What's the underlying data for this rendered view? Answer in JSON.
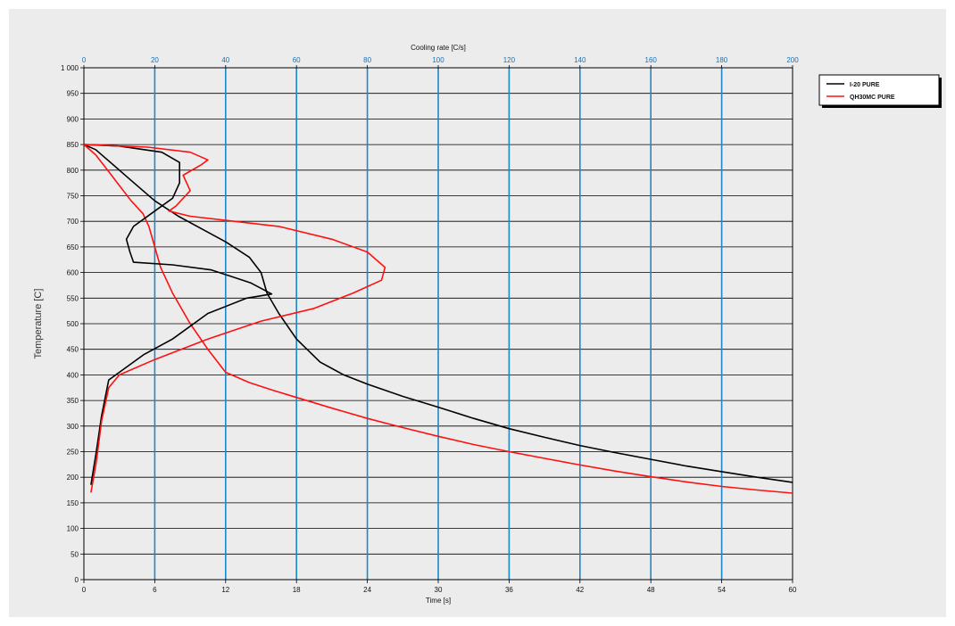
{
  "chart_data": {
    "type": "line",
    "xlabel": "Time [s]",
    "ylabel": "Temperature [C]",
    "x2label": "Cooling rate [C/s]",
    "xlim": [
      0,
      60
    ],
    "ylim": [
      0,
      1000
    ],
    "x2lim": [
      0,
      200
    ],
    "x_ticks": [
      0,
      6,
      12,
      18,
      24,
      30,
      36,
      42,
      48,
      54,
      60
    ],
    "x2_ticks": [
      0,
      20,
      40,
      60,
      80,
      100,
      120,
      140,
      160,
      180,
      200
    ],
    "y_ticks": [
      0,
      50,
      100,
      150,
      200,
      250,
      300,
      350,
      400,
      450,
      500,
      550,
      600,
      650,
      700,
      750,
      800,
      850,
      900,
      950,
      1000
    ],
    "y_tick_labels": [
      "0",
      "50",
      "100",
      "150",
      "200",
      "250",
      "300",
      "350",
      "400",
      "450",
      "500",
      "550",
      "600",
      "650",
      "700",
      "750",
      "800",
      "850",
      "900",
      "950",
      "1 000"
    ],
    "grid": true,
    "legend_position": "top-right outside",
    "series": [
      {
        "name": "I-20 PURE",
        "color": "#000000",
        "axis": "time",
        "points": [
          [
            0,
            850
          ],
          [
            1,
            840
          ],
          [
            2,
            820
          ],
          [
            4,
            780
          ],
          [
            6,
            740
          ],
          [
            8,
            710
          ],
          [
            10,
            685
          ],
          [
            12,
            660
          ],
          [
            14,
            630
          ],
          [
            15,
            600
          ],
          [
            15.5,
            560
          ],
          [
            16.5,
            520
          ],
          [
            18,
            470
          ],
          [
            20,
            425
          ],
          [
            22,
            400
          ],
          [
            24,
            382
          ],
          [
            27,
            358
          ],
          [
            30,
            337
          ],
          [
            33,
            315
          ],
          [
            36,
            295
          ],
          [
            39,
            278
          ],
          [
            42,
            262
          ],
          [
            45,
            248
          ],
          [
            48,
            235
          ],
          [
            51,
            222
          ],
          [
            54,
            211
          ],
          [
            57,
            200
          ],
          [
            60,
            190
          ]
        ]
      },
      {
        "name": "QH30MC PURE",
        "color": "#ff1010",
        "axis": "time",
        "points": [
          [
            0,
            850
          ],
          [
            1,
            830
          ],
          [
            2,
            800
          ],
          [
            3,
            770
          ],
          [
            4,
            740
          ],
          [
            5,
            715
          ],
          [
            5.5,
            690
          ],
          [
            6,
            650
          ],
          [
            6.5,
            610
          ],
          [
            7.5,
            560
          ],
          [
            9,
            500
          ],
          [
            10.5,
            450
          ],
          [
            12,
            405
          ],
          [
            14,
            385
          ],
          [
            16,
            370
          ],
          [
            18,
            356
          ],
          [
            21,
            335
          ],
          [
            24,
            315
          ],
          [
            27,
            297
          ],
          [
            30,
            280
          ],
          [
            33,
            264
          ],
          [
            36,
            250
          ],
          [
            39,
            237
          ],
          [
            42,
            224
          ],
          [
            45,
            212
          ],
          [
            48,
            201
          ],
          [
            51,
            191
          ],
          [
            54,
            182
          ],
          [
            57,
            175
          ],
          [
            60,
            169
          ]
        ]
      },
      {
        "name": "I-20 PURE",
        "color": "#000000",
        "axis": "cooling_rate",
        "points": [
          [
            2,
            185
          ],
          [
            3.5,
            250
          ],
          [
            5,
            320
          ],
          [
            7,
            390
          ],
          [
            10,
            405
          ],
          [
            17,
            440
          ],
          [
            25,
            470
          ],
          [
            35,
            520
          ],
          [
            46,
            550
          ],
          [
            53,
            558
          ],
          [
            47,
            580
          ],
          [
            36,
            605
          ],
          [
            25,
            615
          ],
          [
            14,
            620
          ],
          [
            13,
            640
          ],
          [
            12,
            665
          ],
          [
            14,
            690
          ],
          [
            20,
            720
          ],
          [
            25,
            745
          ],
          [
            27,
            775
          ],
          [
            27,
            815
          ],
          [
            22,
            835
          ],
          [
            10,
            847
          ],
          [
            0,
            850
          ]
        ]
      },
      {
        "name": "QH30MC PURE",
        "color": "#ff1010",
        "axis": "cooling_rate",
        "points": [
          [
            2,
            170
          ],
          [
            3.5,
            230
          ],
          [
            5,
            310
          ],
          [
            7,
            375
          ],
          [
            10,
            400
          ],
          [
            20,
            430
          ],
          [
            35,
            470
          ],
          [
            50,
            505
          ],
          [
            65,
            530
          ],
          [
            76,
            560
          ],
          [
            84,
            585
          ],
          [
            85,
            610
          ],
          [
            80,
            640
          ],
          [
            70,
            665
          ],
          [
            55,
            690
          ],
          [
            30,
            710
          ],
          [
            24,
            720
          ],
          [
            26,
            730
          ],
          [
            30,
            760
          ],
          [
            28,
            790
          ],
          [
            33,
            810
          ],
          [
            35,
            820
          ],
          [
            30,
            835
          ],
          [
            18,
            845
          ],
          [
            0,
            850
          ]
        ]
      }
    ]
  }
}
